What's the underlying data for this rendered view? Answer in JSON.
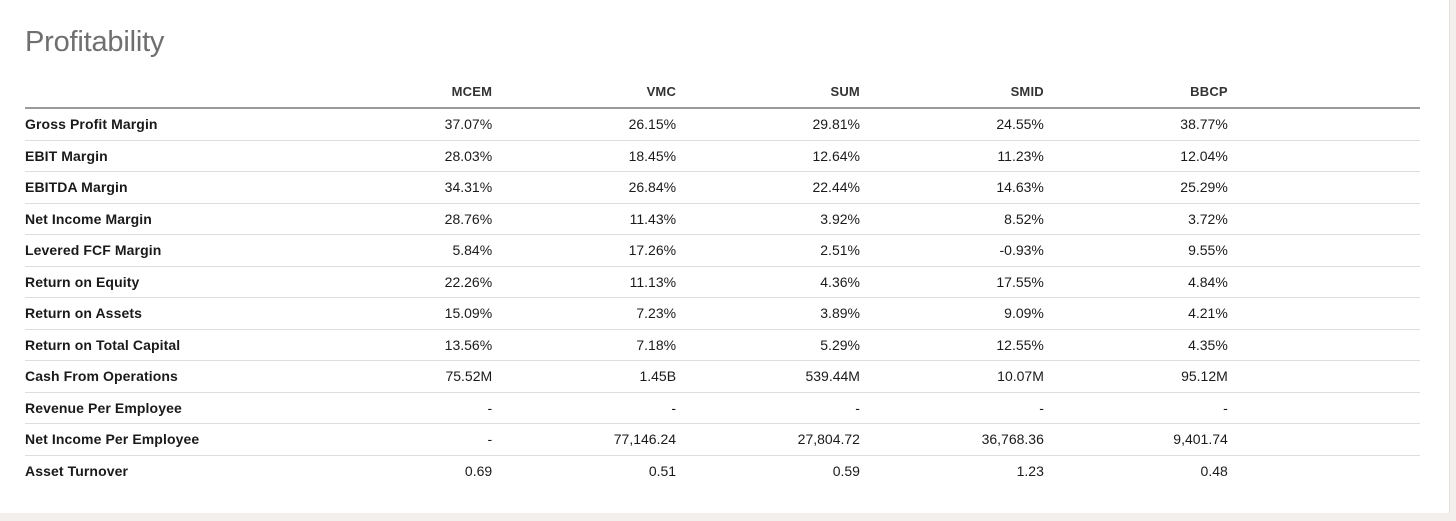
{
  "section": {
    "title": "Profitability"
  },
  "table": {
    "columns": [
      "MCEM",
      "VMC",
      "SUM",
      "SMID",
      "BBCP"
    ],
    "rows": [
      {
        "label": "Gross Profit Margin",
        "values": [
          "37.07%",
          "26.15%",
          "29.81%",
          "24.55%",
          "38.77%"
        ]
      },
      {
        "label": "EBIT Margin",
        "values": [
          "28.03%",
          "18.45%",
          "12.64%",
          "11.23%",
          "12.04%"
        ]
      },
      {
        "label": "EBITDA Margin",
        "values": [
          "34.31%",
          "26.84%",
          "22.44%",
          "14.63%",
          "25.29%"
        ]
      },
      {
        "label": "Net Income Margin",
        "values": [
          "28.76%",
          "11.43%",
          "3.92%",
          "8.52%",
          "3.72%"
        ]
      },
      {
        "label": "Levered FCF Margin",
        "values": [
          "5.84%",
          "17.26%",
          "2.51%",
          "-0.93%",
          "9.55%"
        ]
      },
      {
        "label": "Return on Equity",
        "values": [
          "22.26%",
          "11.13%",
          "4.36%",
          "17.55%",
          "4.84%"
        ]
      },
      {
        "label": "Return on Assets",
        "values": [
          "15.09%",
          "7.23%",
          "3.89%",
          "9.09%",
          "4.21%"
        ]
      },
      {
        "label": "Return on Total Capital",
        "values": [
          "13.56%",
          "7.18%",
          "5.29%",
          "12.55%",
          "4.35%"
        ]
      },
      {
        "label": "Cash From Operations",
        "values": [
          "75.52M",
          "1.45B",
          "539.44M",
          "10.07M",
          "95.12M"
        ]
      },
      {
        "label": "Revenue Per Employee",
        "values": [
          "-",
          "-",
          "-",
          "-",
          "-"
        ]
      },
      {
        "label": "Net Income Per Employee",
        "values": [
          "-",
          "77,146.24",
          "27,804.72",
          "36,768.36",
          "9,401.74"
        ]
      },
      {
        "label": "Asset Turnover",
        "values": [
          "0.69",
          "0.51",
          "0.59",
          "1.23",
          "0.48"
        ]
      }
    ]
  }
}
